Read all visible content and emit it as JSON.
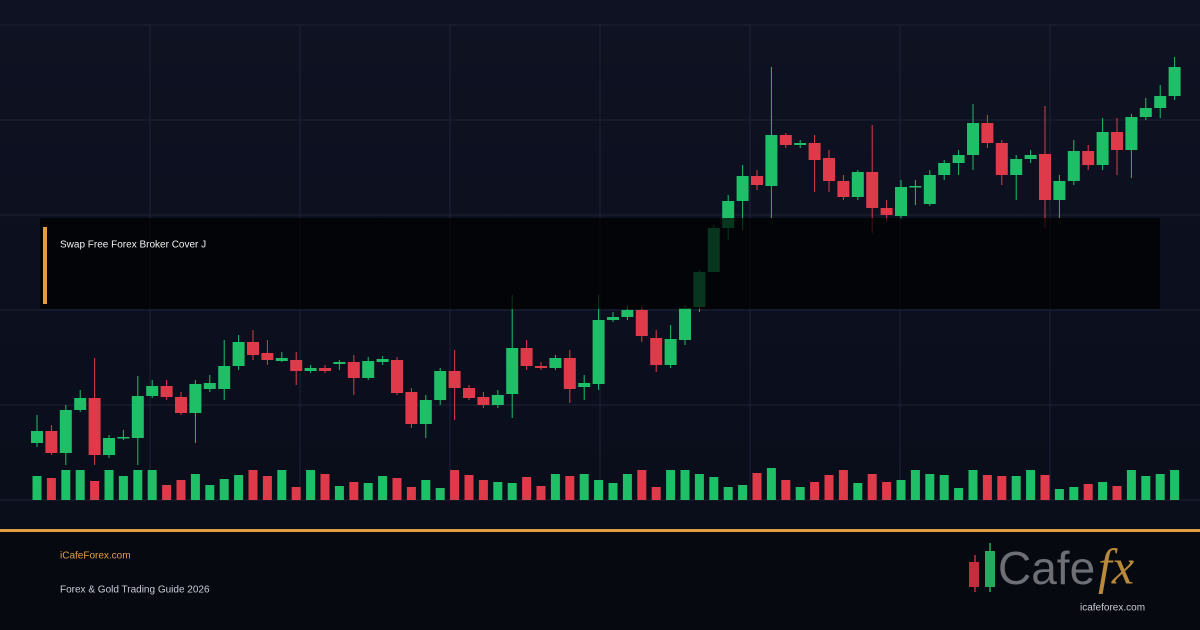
{
  "overlay_title": "Swap Free Forex Broker Cover J",
  "footer": {
    "site": "iCafeForex.com",
    "subtitle": "Forex & Gold Trading Guide 2026"
  },
  "logo": {
    "word": "Cafe",
    "accent": "fx",
    "url": "icafeforex.com"
  },
  "chart_data": {
    "type": "candlestick",
    "up_color": "#1fbf68",
    "down_color": "#de3a4a",
    "ylim": [
      0,
      475
    ],
    "open": [
      57,
      69,
      47,
      90,
      102,
      45,
      62,
      62,
      104,
      114,
      103,
      87,
      111,
      111,
      134,
      158,
      147,
      139,
      140,
      129,
      132,
      136,
      138,
      122,
      138,
      140,
      108,
      76,
      100,
      129,
      112,
      103,
      95,
      106,
      152,
      134,
      132,
      142,
      113,
      116,
      180,
      183,
      190,
      162,
      135,
      160,
      193,
      228,
      272,
      299,
      324,
      314,
      365,
      355,
      357,
      342,
      319,
      303,
      328,
      292,
      284,
      313,
      296,
      325,
      337,
      345,
      377,
      357,
      325,
      341,
      346,
      300,
      319,
      349,
      335,
      368,
      350,
      383,
      392,
      404
    ],
    "high": [
      85,
      75,
      95,
      110,
      142,
      65,
      70,
      124,
      120,
      120,
      108,
      120,
      125,
      160,
      165,
      170,
      160,
      148,
      148,
      135,
      135,
      140,
      145,
      143,
      144,
      143,
      112,
      105,
      132,
      150,
      115,
      108,
      110,
      205,
      160,
      138,
      145,
      150,
      125,
      205,
      188,
      195,
      195,
      170,
      175,
      195,
      230,
      275,
      305,
      335,
      330,
      433,
      367,
      360,
      365,
      350,
      325,
      330,
      375,
      300,
      320,
      320,
      330,
      340,
      350,
      396,
      385,
      360,
      345,
      350,
      394,
      325,
      360,
      355,
      382,
      382,
      386,
      402,
      415,
      443
    ],
    "low": [
      53,
      45,
      35,
      88,
      35,
      42,
      60,
      35,
      102,
      100,
      85,
      57,
      108,
      100,
      130,
      140,
      135,
      138,
      115,
      127,
      127,
      130,
      105,
      120,
      135,
      105,
      72,
      62,
      95,
      80,
      100,
      92,
      92,
      82,
      130,
      130,
      130,
      97,
      100,
      110,
      178,
      180,
      158,
      128,
      132,
      155,
      188,
      228,
      260,
      270,
      310,
      282,
      352,
      352,
      308,
      308,
      300,
      300,
      267,
      278,
      280,
      295,
      294,
      320,
      325,
      330,
      352,
      315,
      300,
      337,
      272,
      282,
      315,
      330,
      330,
      325,
      322,
      380,
      382,
      400
    ],
    "close": [
      69,
      47,
      90,
      102,
      45,
      62,
      63,
      104,
      114,
      103,
      87,
      116,
      117,
      134,
      158,
      145,
      140,
      142,
      129,
      132,
      129,
      138,
      122,
      139,
      141,
      107,
      76,
      100,
      129,
      112,
      102,
      95,
      105,
      152,
      134,
      132,
      142,
      111,
      117,
      180,
      183,
      190,
      164,
      135,
      161,
      192,
      228,
      272,
      299,
      324,
      315,
      365,
      355,
      357,
      340,
      319,
      303,
      328,
      292,
      285,
      313,
      314,
      325,
      337,
      345,
      377,
      357,
      325,
      341,
      345,
      300,
      319,
      349,
      335,
      368,
      350,
      383,
      392,
      404,
      433
    ],
    "volume": [
      24,
      22,
      30,
      30,
      19,
      30,
      24,
      30,
      30,
      15,
      20,
      26,
      15,
      21,
      25,
      30,
      24,
      30,
      13,
      30,
      26,
      14,
      18,
      17,
      24,
      22,
      13,
      20,
      12,
      30,
      25,
      20,
      18,
      17,
      23,
      14,
      26,
      24,
      26,
      20,
      17,
      26,
      30,
      13,
      30,
      30,
      26,
      23,
      13,
      15,
      27,
      32,
      20,
      13,
      18,
      25,
      30,
      17,
      26,
      18,
      20,
      30,
      26,
      25,
      12,
      30,
      25,
      24,
      24,
      30,
      25,
      11,
      13,
      16,
      18,
      14,
      30,
      24,
      26,
      30
    ]
  }
}
